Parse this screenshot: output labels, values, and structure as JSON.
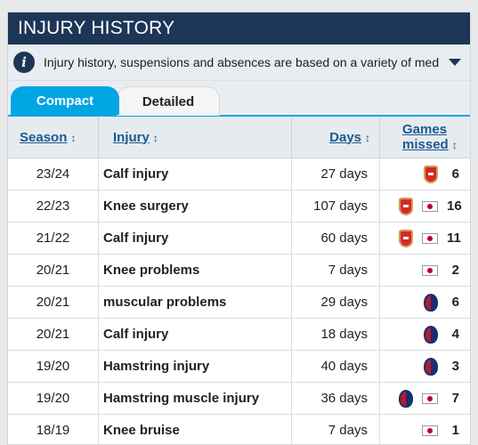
{
  "title": "INJURY HISTORY",
  "info": {
    "icon": "info-icon",
    "text": "Injury history, suspensions and absences are based on a variety of media r..."
  },
  "tabs": [
    {
      "label": "Compact",
      "active": true
    },
    {
      "label": "Detailed",
      "active": false
    }
  ],
  "columns": {
    "season": "Season",
    "injury": "Injury",
    "days": "Days",
    "games": "Games missed"
  },
  "rows": [
    {
      "season": "23/24",
      "injury": "Calf injury",
      "days": "27 days",
      "icons": [
        "arsenal-crest"
      ],
      "games": "6"
    },
    {
      "season": "22/23",
      "injury": "Knee surgery",
      "days": "107 days",
      "icons": [
        "arsenal-crest",
        "japan-flag"
      ],
      "games": "16"
    },
    {
      "season": "21/22",
      "injury": "Calf injury",
      "days": "60 days",
      "icons": [
        "arsenal-crest",
        "japan-flag"
      ],
      "games": "11"
    },
    {
      "season": "20/21",
      "injury": "Knee problems",
      "days": "7 days",
      "icons": [
        "japan-flag"
      ],
      "games": "2"
    },
    {
      "season": "20/21",
      "injury": "muscular problems",
      "days": "29 days",
      "icons": [
        "bologna-crest"
      ],
      "games": "6"
    },
    {
      "season": "20/21",
      "injury": "Calf injury",
      "days": "18 days",
      "icons": [
        "bologna-crest"
      ],
      "games": "4"
    },
    {
      "season": "19/20",
      "injury": "Hamstring injury",
      "days": "40 days",
      "icons": [
        "bologna-crest"
      ],
      "games": "3"
    },
    {
      "season": "19/20",
      "injury": "Hamstring muscle injury",
      "days": "36 days",
      "icons": [
        "bologna-crest",
        "japan-flag"
      ],
      "games": "7"
    },
    {
      "season": "18/19",
      "injury": "Knee bruise",
      "days": "7 days",
      "icons": [
        "japan-flag"
      ],
      "games": "1"
    }
  ],
  "colors": {
    "header": "#1d3557",
    "accent": "#00a6e4",
    "link": "#1d5a8e"
  }
}
